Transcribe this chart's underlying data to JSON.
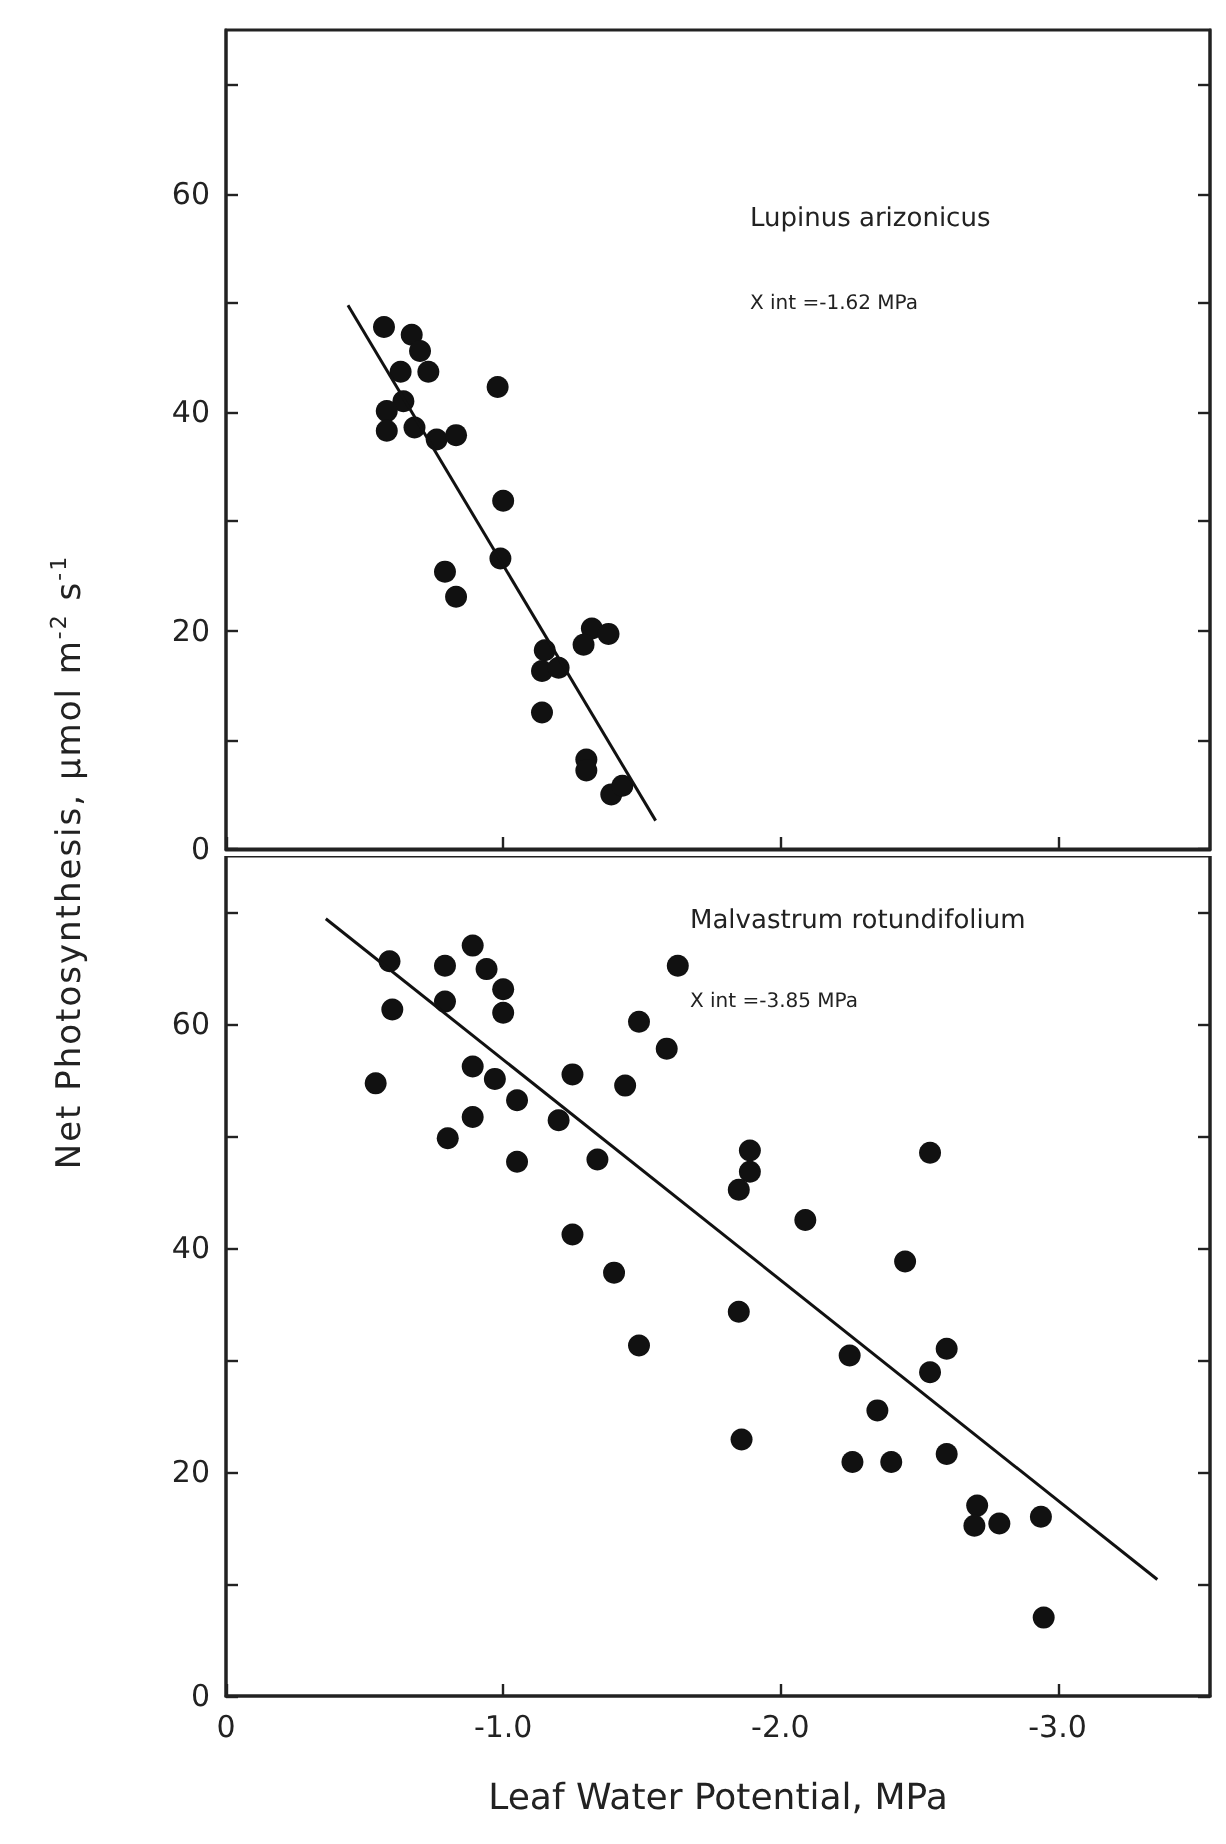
{
  "chart_data": [
    {
      "type": "scatter",
      "annotations": [
        "Lupinus arizonicus",
        "X int =-1.62 MPa"
      ],
      "xlim": [
        0,
        -3.55
      ],
      "xticks": [
        {
          "value": 0,
          "label": null
        },
        {
          "value": -1,
          "label": null
        },
        {
          "value": -2,
          "label": null
        },
        {
          "value": -3,
          "label": null
        }
      ],
      "ylim": [
        0,
        75
      ],
      "yticks": [
        0,
        {
          "value": 10,
          "label": null
        },
        20,
        {
          "value": 30,
          "label": null
        },
        40,
        {
          "value": 50,
          "label": null
        },
        60,
        {
          "value": 70,
          "label": null
        }
      ],
      "tick_labels": "y",
      "series": [
        {
          "type": "scatter",
          "marker": "circle",
          "color": "#111111",
          "x": [
            -0.57,
            -0.67,
            -0.7,
            -0.63,
            -0.73,
            -0.98,
            -0.64,
            -0.58,
            -0.58,
            -0.68,
            -0.76,
            -0.83,
            -1.0,
            -0.99,
            -0.79,
            -0.83,
            -1.32,
            -1.38,
            -1.29,
            -1.15,
            -1.14,
            -1.2,
            -1.14,
            -1.3,
            -1.3,
            -1.39,
            -1.43
          ],
          "values": [
            47.8,
            47.1,
            45.6,
            43.7,
            43.7,
            42.3,
            41.0,
            40.1,
            38.3,
            38.6,
            37.5,
            37.9,
            31.9,
            26.6,
            25.4,
            23.1,
            20.2,
            19.7,
            18.7,
            18.2,
            16.3,
            16.6,
            12.5,
            8.2,
            7.2,
            5.0,
            5.8
          ]
        },
        {
          "type": "line",
          "line_style": "solid",
          "color": "#111111",
          "x": [
            -0.44,
            -1.55
          ],
          "values": [
            49.8,
            2.6
          ]
        }
      ]
    },
    {
      "type": "scatter",
      "annotations": [
        "Malvastrum rotundifolium",
        "X int =-3.85 MPa"
      ],
      "xlabel": "Leaf Water Potential, MPa",
      "ylabel": "Net Photosynthesis, μmol m$^{-2}$ s$^{-1}$",
      "xlim": [
        0,
        -3.55
      ],
      "xticks": [
        0,
        {
          "value": -1,
          "label": "-1.0"
        },
        {
          "value": -2,
          "label": "-2.0"
        },
        {
          "value": -3,
          "label": "-3.0"
        }
      ],
      "ylim": [
        0,
        75
      ],
      "yticks": [
        0,
        {
          "value": 10,
          "label": null
        },
        20,
        {
          "value": 30,
          "label": null
        },
        40,
        {
          "value": 50,
          "label": null
        },
        60,
        {
          "value": 70,
          "label": null
        }
      ],
      "series": [
        {
          "type": "scatter",
          "marker": "circle",
          "color": "#111111",
          "x": [
            -0.59,
            -0.6,
            -0.54,
            -0.79,
            -0.79,
            -0.89,
            -0.94,
            -1.0,
            -1.0,
            -1.63,
            -1.49,
            -1.59,
            -0.89,
            -0.97,
            -1.05,
            -0.89,
            -0.8,
            -1.05,
            -1.25,
            -1.44,
            -1.2,
            -1.34,
            -1.25,
            -1.4,
            -1.49,
            -1.89,
            -1.89,
            -1.85,
            -2.09,
            -2.54,
            -2.45,
            -1.85,
            -1.86,
            -2.25,
            -2.6,
            -2.54,
            -2.35,
            -2.26,
            -2.4,
            -2.6,
            -2.71,
            -2.7,
            -2.79,
            -2.94,
            -2.95
          ],
          "values": [
            65.6,
            61.3,
            54.7,
            65.2,
            62.0,
            67.0,
            64.9,
            63.1,
            61.0,
            65.2,
            60.2,
            57.8,
            56.2,
            55.1,
            53.2,
            51.7,
            49.8,
            47.7,
            55.5,
            54.5,
            51.4,
            47.9,
            41.2,
            37.8,
            31.3,
            48.7,
            46.8,
            45.2,
            42.5,
            48.5,
            38.8,
            34.3,
            22.9,
            30.4,
            31.0,
            28.9,
            25.5,
            20.9,
            20.9,
            21.6,
            17.0,
            15.2,
            15.4,
            16.0,
            7.0
          ]
        },
        {
          "type": "line",
          "line_style": "solid",
          "color": "#111111",
          "x": [
            -0.36,
            -3.36
          ],
          "values": [
            69.4,
            10.4
          ]
        }
      ]
    }
  ]
}
